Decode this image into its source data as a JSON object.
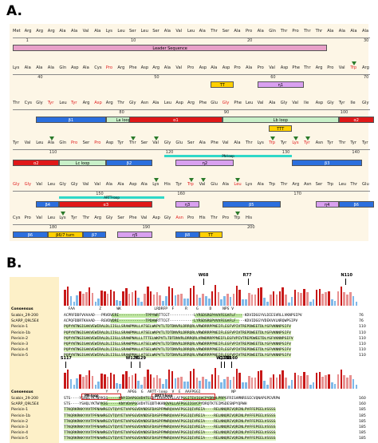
{
  "panel_a_label": "A.",
  "panel_b_label": "B.",
  "rows": [
    {
      "residues": [
        "Met",
        "Arg",
        "Arg",
        "Arg",
        "Ala",
        "Ala",
        "Val",
        "Ala",
        "Lys",
        "Leu",
        "Ser",
        "Leu",
        "Ser",
        "Ala",
        "Val",
        "Leu",
        "Ala",
        "Thr",
        "Ser",
        "Ala",
        "Pro",
        "Ala",
        "Gln",
        "Thr",
        "Pro",
        "Thr",
        "Thr",
        "Ala",
        "Ala",
        "Ala",
        "Ala"
      ],
      "red": [],
      "ticks": [
        {
          "i": 1,
          "n": "1"
        },
        {
          "i": 10,
          "n": "10"
        },
        {
          "i": 20,
          "n": "20"
        },
        {
          "i": 30,
          "n": "30"
        }
      ],
      "tris": [],
      "segs": [
        {
          "from": 0,
          "to": 26,
          "label": "Leader Sequence",
          "color": "#e8a0c8",
          "row": 0
        }
      ]
    },
    {
      "residues": [
        "Lys",
        "Ala",
        "Ala",
        "Ala",
        "Gln",
        "Asp",
        "Ala",
        "Cys",
        "Pro",
        "Arg",
        "Phe",
        "Asp",
        "Arg",
        "Ala",
        "Val",
        "Pro",
        "Asp",
        "Ala",
        "Asp",
        "Pro",
        "Ala",
        "Pro",
        "Val",
        "Asp",
        "Phe",
        "Thr",
        "Arg",
        "Pro",
        "Val",
        "Trp",
        "Arg"
      ],
      "red": [
        8,
        29
      ],
      "ticks": [
        {
          "i": 2,
          "n": "40"
        },
        {
          "i": 12,
          "n": "50"
        },
        {
          "i": 22,
          "n": "60"
        },
        {
          "i": 30,
          "n": "70"
        }
      ],
      "tris": [
        29
      ],
      "segs": [
        {
          "from": 17,
          "to": 18,
          "label": "TT",
          "color": "#ffd000",
          "row": 0
        },
        {
          "from": 21,
          "to": 24,
          "label": "η1",
          "color": "#d9a0f0",
          "row": 0
        }
      ]
    },
    {
      "residues": [
        "Thr",
        "Cys",
        "Gly",
        "Tyr",
        "Leu",
        "Tyr",
        "Arg",
        "Asp",
        "Arg",
        "Thr",
        "Gly",
        "Asn",
        "Ala",
        "Leu",
        "Asp",
        "Arg",
        "Phe",
        "Glu",
        "Gly",
        "Phe",
        "Leu",
        "Val",
        "Ala",
        "Gly",
        "Val",
        "Ile",
        "Asp",
        "Gly",
        "Tyr",
        "Ile",
        "Gly"
      ],
      "red": [
        3,
        5,
        7,
        18
      ],
      "ticks": [
        {
          "i": 9,
          "n": "80"
        },
        {
          "i": 18,
          "n": "90"
        },
        {
          "i": 28,
          "n": "100"
        }
      ],
      "tris": [],
      "segs": [
        {
          "from": 2,
          "to": 7,
          "label": "β1",
          "color": "#2b6fde",
          "row": 0
        },
        {
          "from": 8,
          "to": 10,
          "label": "La loop",
          "color": "#c8f0c8",
          "row": 0
        },
        {
          "from": 10,
          "to": 17,
          "label": "α1",
          "color": "#e01818",
          "row": 0
        },
        {
          "from": 18,
          "to": 27,
          "label": "Lb loop",
          "color": "#c8f0c8",
          "row": 0
        },
        {
          "from": 28,
          "to": 30,
          "label": "α2",
          "color": "#e01818",
          "row": 0
        },
        {
          "from": 22,
          "to": 23,
          "label": "TTT",
          "color": "#ffd000",
          "row": 1
        }
      ]
    },
    {
      "residues": [
        "Tyr",
        "Val",
        "Leu",
        "Ala",
        "Gln",
        "Pro",
        "Ser",
        "Pro",
        "Asp",
        "Tyr",
        "Thr",
        "Ser",
        "Val",
        "Gly",
        "Glu",
        "Ser",
        "Ala",
        "Phe",
        "Val",
        "Ala",
        "Thr",
        "Lys",
        "Trp",
        "Tyr",
        "Lys",
        "Tyr",
        "Asn",
        "Tyr",
        "Thr",
        "Tyr",
        "Tyr"
      ],
      "red": [
        5,
        7,
        22,
        24,
        25
      ],
      "ticks": [
        {
          "i": 3,
          "n": "110"
        },
        {
          "i": 13,
          "n": "120"
        },
        {
          "i": 23,
          "n": "130"
        },
        {
          "i": 29,
          "n": "140"
        }
      ],
      "tris": [
        3,
        10,
        12,
        22,
        24,
        25
      ],
      "segs": [
        {
          "from": 0,
          "to": 3,
          "label": "α2",
          "color": "#e01818",
          "row": 0
        },
        {
          "from": 4,
          "to": 7,
          "label": "Lc loop",
          "color": "#c8f0c8",
          "row": 0
        },
        {
          "from": 8,
          "to": 11,
          "label": "β2",
          "color": "#2b6fde",
          "row": 0
        },
        {
          "from": 14,
          "to": 18,
          "label": "η2",
          "color": "#d9a0f0",
          "row": 0
        },
        {
          "from": 24,
          "to": 29,
          "label": "β3",
          "color": "#2b6fde",
          "row": 0
        }
      ],
      "pn": {
        "from": 13,
        "to": 24,
        "label": "PN-loop"
      }
    },
    {
      "residues": [
        "Gly",
        "Gly",
        "Val",
        "Leu",
        "Gly",
        "Gly",
        "Val",
        "Val",
        "Ala",
        "Ala",
        "Asp",
        "Ala",
        "Lys",
        "His",
        "Tyr",
        "Trp",
        "Val",
        "Glu",
        "Ala",
        "Leu",
        "Lys",
        "Ala",
        "Trp",
        "Thr",
        "Arg",
        "Asn",
        "Ser",
        "Trp",
        "Leu",
        "Thr",
        "Glu"
      ],
      "red": [
        0,
        1,
        15,
        19
      ],
      "ticks": [
        {
          "i": 7,
          "n": "150"
        },
        {
          "i": 14,
          "n": "160"
        },
        {
          "i": 24,
          "n": "170"
        }
      ],
      "tris": [
        12,
        15,
        16,
        19
      ],
      "segs": [
        {
          "from": 2,
          "to": 3,
          "label": "β4",
          "color": "#2b6fde",
          "row": 0
        },
        {
          "from": 4,
          "to": 11,
          "label": "α3",
          "color": "#e01818",
          "row": 0
        },
        {
          "from": 14,
          "to": 15,
          "label": "η3",
          "color": "#d9a0f0",
          "row": 0
        },
        {
          "from": 18,
          "to": 22,
          "label": "β5",
          "color": "#2b6fde",
          "row": 0
        },
        {
          "from": 26,
          "to": 27,
          "label": "η4",
          "color": "#d9a0f0",
          "row": 0
        },
        {
          "from": 28,
          "to": 30,
          "label": "β6",
          "color": "#2b6fde",
          "row": 0
        }
      ],
      "artt": {
        "from": 4,
        "to": 13,
        "label": "ARTT-loop"
      }
    },
    {
      "residues": [
        "Cys",
        "Pro",
        "Val",
        "Leu",
        "Lys",
        "Tyr",
        "Thr",
        "Arg",
        "Gly",
        "Ser",
        "Phe",
        "Val",
        "Asp",
        "Gly",
        "Asn",
        "Pro",
        "His",
        "Thr",
        "Pro",
        "Trp",
        "His"
      ],
      "red": [
        14
      ],
      "ticks": [
        {
          "i": 3,
          "n": "180"
        },
        {
          "i": 11,
          "n": "190"
        },
        {
          "i": 20,
          "n": "200"
        }
      ],
      "tris": [
        4,
        19
      ],
      "segs": [
        {
          "from": 0,
          "to": 2,
          "label": "β6",
          "color": "#2b6fde",
          "row": 0
        },
        {
          "from": 3,
          "to": 5,
          "label": "β6/7 turn",
          "color": "#ffd000",
          "row": 0
        },
        {
          "from": 6,
          "to": 7,
          "label": "β7",
          "color": "#2b6fde",
          "row": 0
        },
        {
          "from": 9,
          "to": 11,
          "label": "η5",
          "color": "#d9a0f0",
          "row": 0
        },
        {
          "from": 14,
          "to": 15,
          "label": "β8",
          "color": "#2b6fde",
          "row": 0
        },
        {
          "from": 16,
          "to": 17,
          "label": "TT",
          "color": "#ffd000",
          "row": 0
        }
      ]
    }
  ],
  "alignment_top": {
    "consensus_label": "Consensus",
    "consensus_seq": "  FAA           Z       WK               LRDRFP  F     R    G     D     NPS V",
    "markers": [
      {
        "pos": 0.47,
        "label": "W68"
      },
      {
        "pos": 0.62,
        "label": "R77"
      },
      {
        "pos": 0.95,
        "label": "N110"
      }
    ],
    "names": [
      "Scabin_29-200",
      "ScARP_Q9L5E4",
      "Pierisin-1",
      "Pierisin-1b",
      "Pierisin-2",
      "Pierisin-3",
      "Pierisin-4",
      "Pierisin-5"
    ],
    "seqs": [
      "ACPRFDDFVVAAAD---PRVDVERI------------TPPYWRTTCGT-----------LYRSDSRGPAVVFEGAFLF----KDVIDGGYVLDIESVRLLVKNPSIPV",
      "ACPQFDDRTKAAAD---RGVDVDRI------------TPDAWRTTCGT-----------LYRSDSRGPVVVFEGAFLF----KDVIDGGYVDEKVVLNRQWPSIPV",
      "PQPYNTNGIGAKVEWIRALDLIISLLSRAWPMALLATSELWKPVTLTDTDNVRLDRRQRLVRWDRRPPNEIFLEGFVPIVTREPDWEETDLYGFVKNNPSIFV",
      "PQPYNTNGIGAKVEWIRALDLIISLLSRAWPMALLATSELWKPVTLTDTDNVRLDRRQRLVRWDRRPPNEIFLEGFVPIVTREPDWEETDLYGFVKNNPSIFV",
      "PQPYNTNGIGAKVEWIRALDLIISLLSRAWPNALLLTTTELWKPVTLTDTDNVRLDRRQRLVRWDRRPPNEIFLEGFVPIVTREPDWEETDLYGFVKNNPSIFV",
      "PQPYNTNGIGAKVEWIRALDLIISLLSRAWPMALLATSELWKPVTLTDTDNVRLDRRQRLVRWDRRPPNEIFLEGFVPIVTREPDWEETDLYGFVKNNPSIFV",
      "PQPYNTNGIGAKVEWIRALDLIISLLSRAWPMALLATSELWKPVTLTDTDNVRLDRRQRLVRWDRRPPNEIFLEGFVPIVTREPDWEETDLYGFVKNNPSIFV",
      "PQPYNTNGIGAKVEWIRALDLIISLLSRAWPMALLATSELWKPVTLTDTDNVRLDRRQRLVRWDRRPPNEIFLEGFVPIVTREPDWEETDLYGFVKNNPSIFV"
    ],
    "ends": [
      "76",
      "76",
      "110",
      "110",
      "110",
      "110",
      "110",
      "110"
    ]
  },
  "alignment_bottom": {
    "consensus_label": "Consensus",
    "consensus_seq": "                   Y    Y    APGG  G  ARTT-loop  V  E  AAFPGGI              NP",
    "markers": [
      {
        "pos": 0.005,
        "label": "S117"
      },
      {
        "pos": 0.225,
        "label": "W128"
      },
      {
        "pos": 0.255,
        "label": "Y129"
      },
      {
        "pos": 0.54,
        "label": "Q158"
      },
      {
        "pos": 0.53,
        "label": "W155"
      },
      {
        "pos": 0.565,
        "label": "E160"
      }
    ],
    "pn_label": "PN-loop",
    "artt_label": "ARTT-loop",
    "names": [
      "Scabin_29-200",
      "ScARP_Q9L5E4",
      "Pierisin-1",
      "Pierisin-1b",
      "Pierisin-2",
      "Pierisin-3",
      "Pierisin-4",
      "Pierisin-5"
    ],
    "seqs": [
      "STS----YSHQLYKTWYKSG-----KNYIDAPGGVDVTEQDFIRHAQVALLAFPGGITEVIGVCPYDRQLPRPSFRISAMNRSSECVQNAPGPEVRPW",
      "STS----YSHQLYKTWYKSG-----KNYVDAPGGVDVTEQDTHKANQVALLAFPGGIIGVCPYDRQTKTEIMSDESNPYQPWH",
      "TTKQRKRKKYVVTPFNAWRGIVTQVYETVAPGGVDVNDSFDASPFMWRQVAAFPGGIQIVREIA----RELNNQRIVQRINLPVFFEPEELVSSSS",
      "TTKQRKRKKYVVTPFNAWRGIVTQVYETVAPGGVDVNDSFDASPFMWRQVAAFPGGIQIVREIA----RELNNQRIVQRINLPVFFEPEELVSSSS",
      "TTKQRKRKKYVVTPFNAWRGIVTQVYETVAPGGVDVNDSFDASPFMWRQVAAFPGGIQIVREIA----RELNNQRIVQRINLPVFFEPEELVSSSS",
      "TTKQRKRKKYVVTPFNAWRGIVTQVYETVAPGGVDVNDSFDASPFMWRQVAAFPGGIQIVREIA----RELNNQRIVQRINLPVFFEPEELVSSSS",
      "TTKQRKRKKYVVTPFNAWRGIVTQVYETVAPGGVDVNDSFDASPFMWRQVAAFPGGIQIVREIA----RELNNQRIVQRINLPVFFEPEELVSSSS",
      "TTKQRKRKKYVVTPFNAWRGIVTQVYETVAPGGVDVNDSFDASPFMWRQVAAFPGGIQIVREIA----RELNNQRIVQRINLPVFFEPEELVSSSS"
    ],
    "ends": [
      "160",
      "160",
      "185",
      "185",
      "185",
      "185",
      "185",
      "185"
    ]
  }
}
